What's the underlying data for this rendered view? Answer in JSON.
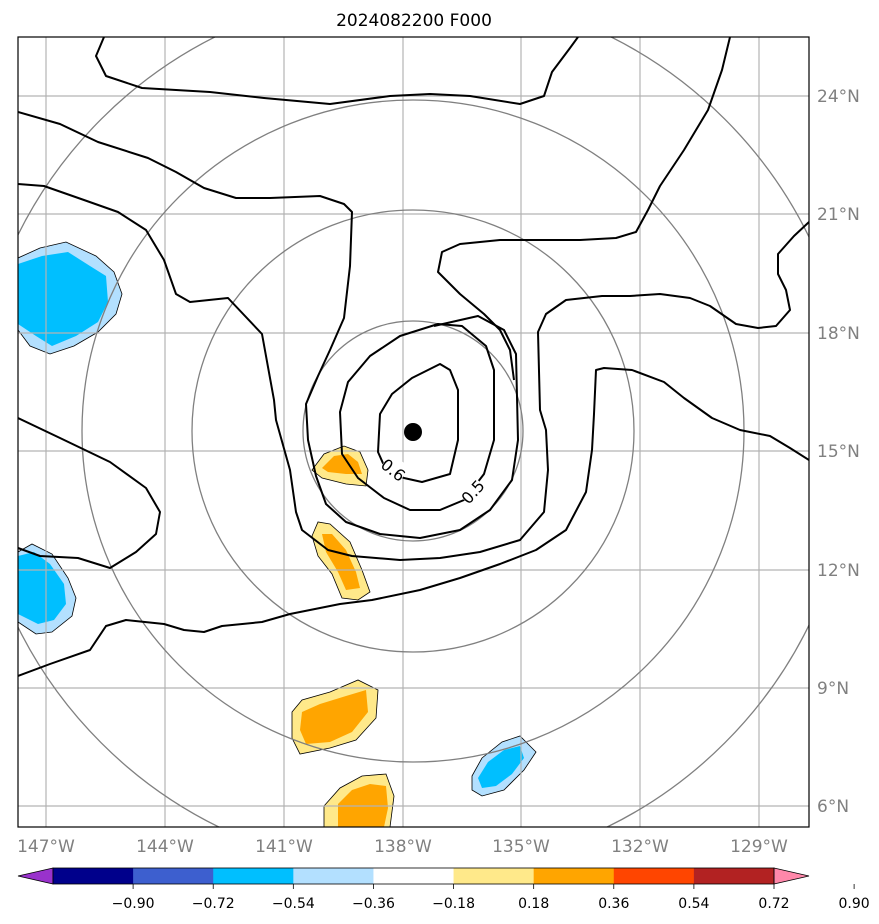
{
  "title": "2024082200 F000",
  "map": {
    "lon_labels": [
      "147°W",
      "144°W",
      "141°W",
      "138°W",
      "135°W",
      "132°W",
      "129°W"
    ],
    "lat_labels": [
      "6°N",
      "9°N",
      "12°N",
      "15°N",
      "18°N",
      "21°N",
      "24°N"
    ],
    "grid_color": "#b3b3b3",
    "range_ring_color": "#808080",
    "contour_color": "#000000",
    "contour_labels": [
      "0.6",
      "0.5"
    ],
    "center_marker": "storm-center-dot"
  },
  "colorbar": {
    "tick_labels": [
      "−0.90",
      "−0.72",
      "−0.54",
      "−0.36",
      "−0.18",
      "0.18",
      "0.36",
      "0.54",
      "0.72",
      "0.90"
    ],
    "colors": [
      "#9932cc",
      "#00008b",
      "#3d5fcf",
      "#00bfff",
      "#b3e0ff",
      "#ffffff",
      "#ffe98a",
      "#ffa500",
      "#ff4500",
      "#b22222",
      "#ff88aa"
    ]
  }
}
